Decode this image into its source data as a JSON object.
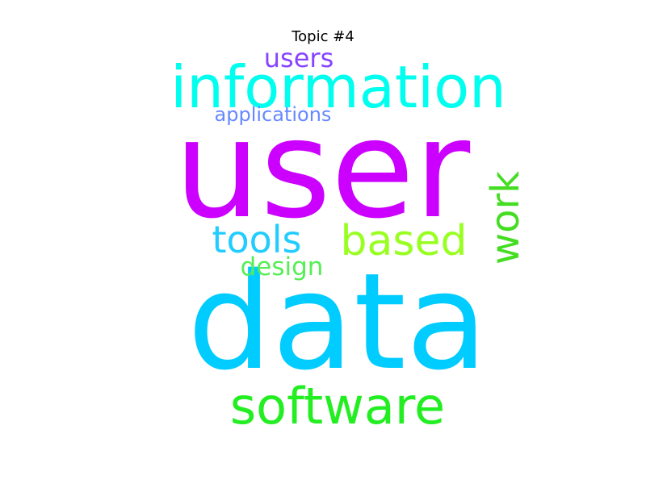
{
  "title": "Topic #4",
  "words": [
    {
      "text": "user",
      "color": "#cc00ff",
      "weight": 1.0,
      "orientation": "horizontal"
    },
    {
      "text": "data",
      "color": "#00ccff",
      "weight": 0.98,
      "orientation": "horizontal"
    },
    {
      "text": "information",
      "color": "#00ffee",
      "weight": 0.45,
      "orientation": "horizontal"
    },
    {
      "text": "software",
      "color": "#22ee22",
      "weight": 0.4,
      "orientation": "horizontal"
    },
    {
      "text": "based",
      "color": "#99ff22",
      "weight": 0.36,
      "orientation": "horizontal"
    },
    {
      "text": "tools",
      "color": "#22ccff",
      "weight": 0.32,
      "orientation": "horizontal"
    },
    {
      "text": "work",
      "color": "#44dd22",
      "weight": 0.32,
      "orientation": "vertical"
    },
    {
      "text": "users",
      "color": "#8844ff",
      "weight": 0.24,
      "orientation": "horizontal"
    },
    {
      "text": "design",
      "color": "#55ee55",
      "weight": 0.22,
      "orientation": "horizontal"
    },
    {
      "text": "applications",
      "color": "#6688ff",
      "weight": 0.18,
      "orientation": "horizontal"
    }
  ]
}
